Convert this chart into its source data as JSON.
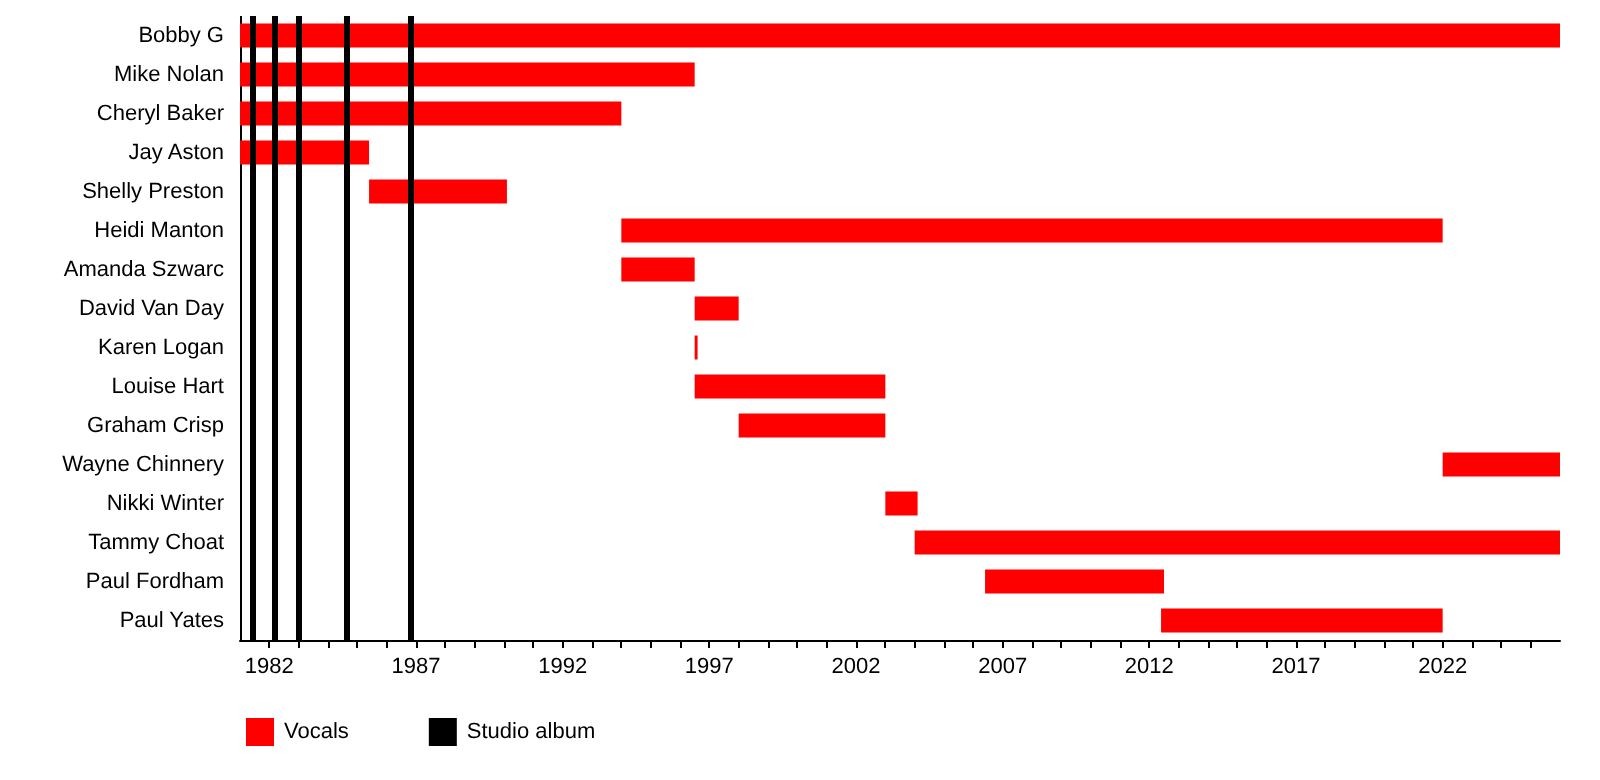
{
  "chart_data": {
    "type": "bar",
    "orientation": "horizontal",
    "categories": [
      "Bobby G",
      "Mike Nolan",
      "Cheryl Baker",
      "Jay Aston",
      "Shelly Preston",
      "Heidi Manton",
      "Amanda Szwarc",
      "David Van Day",
      "Karen Logan",
      "Louise Hart",
      "Graham Crisp",
      "Wayne Chinnery",
      "Nikki Winter",
      "Tammy Choat",
      "Paul Fordham",
      "Paul Yates"
    ],
    "series": [
      {
        "name": "Vocals",
        "color": "#ff0000",
        "base": [
          1981,
          1981,
          1981,
          1981,
          1985.4,
          1994,
          1994,
          1996.5,
          1996.5,
          1996.5,
          1998,
          2022,
          2003,
          2004,
          2006.4,
          2012.4
        ],
        "values": [
          45,
          15.5,
          13,
          4.4,
          4.7,
          28,
          2.5,
          1.5,
          0.1,
          6.5,
          5,
          4,
          1.1,
          22,
          6.1,
          9.6
        ]
      }
    ],
    "ref_lines": [
      {
        "axis": "x",
        "value": 1981.4,
        "label": "Studio album",
        "color": "#000000"
      },
      {
        "axis": "x",
        "value": 1982.2,
        "color": "#000000"
      },
      {
        "axis": "x",
        "value": 1983,
        "color": "#000000"
      },
      {
        "axis": "x",
        "value": 1984.6,
        "color": "#000000"
      },
      {
        "axis": "x",
        "value": 1986.8,
        "color": "#000000"
      }
    ],
    "xlim": [
      1981,
      2026
    ],
    "xticks": [
      1982,
      {
        "value": 1983,
        "label": null
      },
      {
        "value": 1984,
        "label": null
      },
      {
        "value": 1985,
        "label": null
      },
      {
        "value": 1986,
        "label": null
      },
      1987,
      {
        "value": 1988,
        "label": null
      },
      {
        "value": 1989,
        "label": null
      },
      {
        "value": 1990,
        "label": null
      },
      {
        "value": 1991,
        "label": null
      },
      1992,
      {
        "value": 1993,
        "label": null
      },
      {
        "value": 1994,
        "label": null
      },
      {
        "value": 1995,
        "label": null
      },
      {
        "value": 1996,
        "label": null
      },
      1997,
      {
        "value": 1998,
        "label": null
      },
      {
        "value": 1999,
        "label": null
      },
      {
        "value": 2000,
        "label": null
      },
      {
        "value": 2001,
        "label": null
      },
      2002,
      {
        "value": 2003,
        "label": null
      },
      {
        "value": 2004,
        "label": null
      },
      {
        "value": 2005,
        "label": null
      },
      {
        "value": 2006,
        "label": null
      },
      2007,
      {
        "value": 2008,
        "label": null
      },
      {
        "value": 2009,
        "label": null
      },
      {
        "value": 2010,
        "label": null
      },
      {
        "value": 2011,
        "label": null
      },
      2012,
      {
        "value": 2013,
        "label": null
      },
      {
        "value": 2014,
        "label": null
      },
      {
        "value": 2015,
        "label": null
      },
      {
        "value": 2016,
        "label": null
      },
      2017,
      {
        "value": 2018,
        "label": null
      },
      {
        "value": 2019,
        "label": null
      },
      {
        "value": 2020,
        "label": null
      },
      {
        "value": 2021,
        "label": null
      },
      2022,
      {
        "value": 2023,
        "label": null
      },
      {
        "value": 2024,
        "label": null
      },
      {
        "value": 2025,
        "label": null
      }
    ],
    "grid": false,
    "legend": "bottom left"
  }
}
